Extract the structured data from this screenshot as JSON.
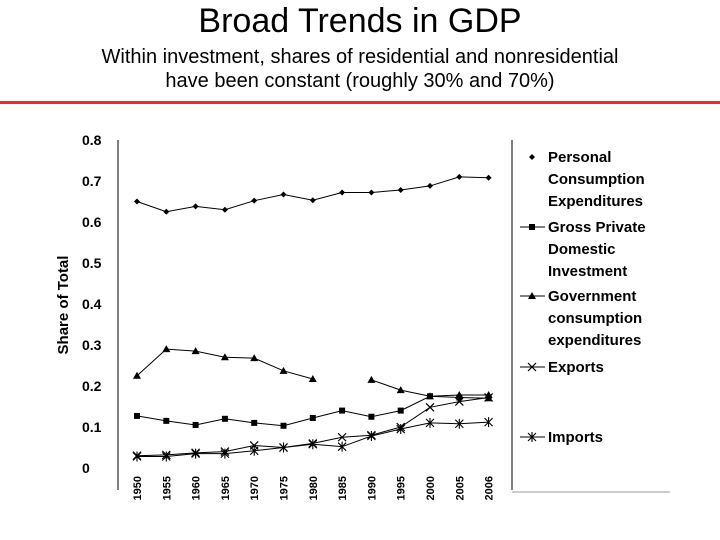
{
  "slide": {
    "title": "Broad Trends in GDP",
    "subtitle_line1": "Within investment, shares of residential and nonresidential",
    "subtitle_line2": "have been constant (roughly 30% and 70%)"
  },
  "colors": {
    "rule": "#e03030",
    "series": "#000000",
    "bottom_rule": "#999999"
  },
  "chart_data": {
    "type": "line",
    "title": "",
    "xlabel": "",
    "ylabel": "Share of Total",
    "ylim": [
      0,
      0.8
    ],
    "yticks": [
      "0",
      "0.1",
      "0.2",
      "0.3",
      "0.4",
      "0.5",
      "0.6",
      "0.7",
      "0.8"
    ],
    "x": [
      "1950",
      "1955",
      "1960",
      "1965",
      "1970",
      "1975",
      "1980",
      "1985",
      "1990",
      "1995",
      "2000",
      "2005",
      "2006"
    ],
    "grid": false,
    "legend_position": "right",
    "series": [
      {
        "name": "Personal Consumption Expenditures",
        "marker": "diamond",
        "legend_lines": [
          "Personal",
          "Consumption",
          "Expenditures"
        ],
        "values": [
          0.65,
          0.625,
          0.638,
          0.63,
          0.652,
          0.667,
          0.653,
          0.672,
          0.672,
          0.678,
          0.688,
          0.71,
          0.708
        ]
      },
      {
        "name": "Gross Private Domestic Investment",
        "marker": "square",
        "legend_lines": [
          "Gross Private",
          "Domestic",
          "Investment"
        ],
        "values": [
          0.127,
          0.115,
          0.105,
          0.12,
          0.11,
          0.103,
          0.122,
          0.14,
          0.125,
          0.14,
          0.175,
          0.172,
          0.17
        ]
      },
      {
        "name": "Government consumption expenditures",
        "marker": "triangle",
        "legend_lines": [
          "Government",
          "consumption",
          "expenditures"
        ],
        "values": [
          0.225,
          0.29,
          0.285,
          0.27,
          0.268,
          0.237,
          0.217,
          null,
          0.215,
          0.19,
          0.175,
          0.178,
          0.178
        ]
      },
      {
        "name": "Exports",
        "marker": "x",
        "legend_lines": [
          "Exports"
        ],
        "values": [
          0.03,
          0.032,
          0.037,
          0.04,
          0.055,
          0.05,
          0.06,
          0.075,
          0.08,
          0.1,
          0.148,
          0.162,
          0.172
        ]
      },
      {
        "name": "Imports",
        "marker": "asterisk",
        "legend_lines": [
          "Imports"
        ],
        "values": [
          0.028,
          0.028,
          0.035,
          0.035,
          0.042,
          0.05,
          0.058,
          0.052,
          0.078,
          0.095,
          0.11,
          0.108,
          0.112
        ]
      }
    ]
  }
}
